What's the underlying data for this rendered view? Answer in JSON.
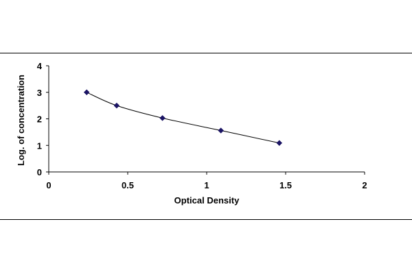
{
  "chart_data": {
    "type": "scatter",
    "title": "",
    "xlabel": "Optical Density",
    "ylabel": "Log. of concentration",
    "xlim": [
      0,
      2
    ],
    "ylim": [
      0,
      4
    ],
    "x_ticks": [
      0,
      0.5,
      1,
      1.5,
      2
    ],
    "x_tick_labels": [
      "0",
      "0.5",
      "1",
      "1.5",
      "2"
    ],
    "y_ticks": [
      0,
      1,
      2,
      3,
      4
    ],
    "y_tick_labels": [
      "0",
      "1",
      "2",
      "3",
      "4"
    ],
    "grid": false,
    "legend": "none",
    "trendline": "smooth curve",
    "colors": {
      "marker": "#1b1464",
      "line": "#000000"
    },
    "series": [
      {
        "points": [
          {
            "x": 0.24,
            "y": 3.0
          },
          {
            "x": 0.43,
            "y": 2.5
          },
          {
            "x": 0.72,
            "y": 2.03
          },
          {
            "x": 1.09,
            "y": 1.56
          },
          {
            "x": 1.46,
            "y": 1.09
          }
        ]
      }
    ]
  }
}
